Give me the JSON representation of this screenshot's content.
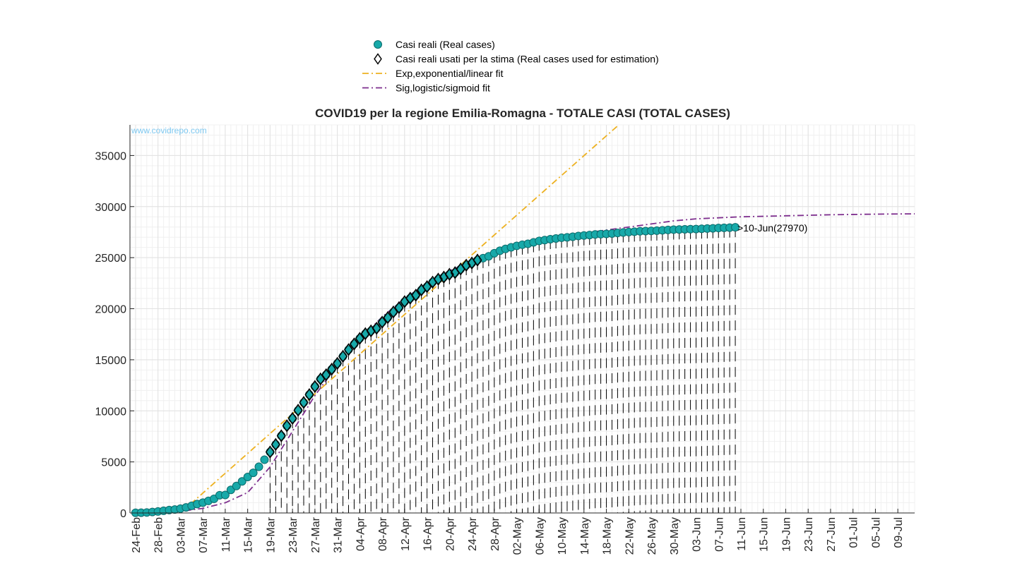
{
  "chart_data": {
    "type": "line",
    "title": "COVID19 per la regione Emilia-Romagna - TOTALE CASI (TOTAL CASES)",
    "watermark": "www.covidrepo.com",
    "annotation": ">10-Jun(27970)",
    "xlim": [
      -1,
      139
    ],
    "ylim": [
      0,
      38000
    ],
    "yticks": [
      0,
      5000,
      10000,
      15000,
      20000,
      25000,
      30000,
      35000
    ],
    "xticks": [
      {
        "value": 0,
        "label": "24-Feb"
      },
      {
        "value": 4,
        "label": "28-Feb"
      },
      {
        "value": 8,
        "label": "03-Mar"
      },
      {
        "value": 12,
        "label": "07-Mar"
      },
      {
        "value": 16,
        "label": "11-Mar"
      },
      {
        "value": 20,
        "label": "15-Mar"
      },
      {
        "value": 24,
        "label": "19-Mar"
      },
      {
        "value": 28,
        "label": "23-Mar"
      },
      {
        "value": 32,
        "label": "27-Mar"
      },
      {
        "value": 36,
        "label": "31-Mar"
      },
      {
        "value": 40,
        "label": "04-Apr"
      },
      {
        "value": 44,
        "label": "08-Apr"
      },
      {
        "value": 48,
        "label": "12-Apr"
      },
      {
        "value": 52,
        "label": "16-Apr"
      },
      {
        "value": 56,
        "label": "20-Apr"
      },
      {
        "value": 60,
        "label": "24-Apr"
      },
      {
        "value": 64,
        "label": "28-Apr"
      },
      {
        "value": 68,
        "label": "02-May"
      },
      {
        "value": 72,
        "label": "06-May"
      },
      {
        "value": 76,
        "label": "10-May"
      },
      {
        "value": 80,
        "label": "14-May"
      },
      {
        "value": 84,
        "label": "18-May"
      },
      {
        "value": 88,
        "label": "22-May"
      },
      {
        "value": 92,
        "label": "26-May"
      },
      {
        "value": 96,
        "label": "30-May"
      },
      {
        "value": 100,
        "label": "03-Jun"
      },
      {
        "value": 104,
        "label": "07-Jun"
      },
      {
        "value": 108,
        "label": "11-Jun"
      },
      {
        "value": 112,
        "label": "15-Jun"
      },
      {
        "value": 116,
        "label": "19-Jun"
      },
      {
        "value": 120,
        "label": "23-Jun"
      },
      {
        "value": 124,
        "label": "27-Jun"
      },
      {
        "value": 128,
        "label": "01-Jul"
      },
      {
        "value": 132,
        "label": "05-Jul"
      },
      {
        "value": 136,
        "label": "09-Jul"
      }
    ],
    "grid": true,
    "minor_grid": true,
    "series": [
      {
        "name": "Casi reali (Real cases)",
        "color": "#17a9a9",
        "marker": "circle",
        "stems": true,
        "x": [
          0,
          1,
          2,
          3,
          4,
          5,
          6,
          7,
          8,
          9,
          10,
          11,
          12,
          13,
          14,
          15,
          16,
          17,
          18,
          19,
          20,
          21,
          22,
          23,
          24,
          25,
          26,
          27,
          28,
          29,
          30,
          31,
          32,
          33,
          34,
          35,
          36,
          37,
          38,
          39,
          40,
          41,
          42,
          43,
          44,
          45,
          46,
          47,
          48,
          49,
          50,
          51,
          52,
          53,
          54,
          55,
          56,
          57,
          58,
          59,
          60,
          61,
          62,
          63,
          64,
          65,
          66,
          67,
          68,
          69,
          70,
          71,
          72,
          73,
          74,
          75,
          76,
          77,
          78,
          79,
          80,
          81,
          82,
          83,
          84,
          85,
          86,
          87,
          88,
          89,
          90,
          91,
          92,
          93,
          94,
          95,
          96,
          97,
          98,
          99,
          100,
          101,
          102,
          103,
          104,
          105,
          106,
          107
        ],
        "values": [
          18,
          26,
          47,
          97,
          145,
          217,
          285,
          335,
          420,
          544,
          698,
          870,
          1010,
          1180,
          1386,
          1739,
          1758,
          2263,
          2644,
          3093,
          3522,
          3931,
          4525,
          5214,
          5968,
          6705,
          7555,
          8535,
          9254,
          10054,
          10816,
          11588,
          12383,
          13119,
          13531,
          14074,
          14644,
          15333,
          15988,
          16540,
          17089,
          17556,
          17825,
          18081,
          18677,
          19128,
          19674,
          20098,
          20686,
          21029,
          21318,
          21834,
          22160,
          22601,
          22891,
          23092,
          23364,
          23529,
          23880,
          24254,
          24470,
          24758,
          24952,
          25132,
          25436,
          25675,
          25859,
          26016,
          26155,
          26267,
          26354,
          26500,
          26639,
          26718,
          26811,
          26875,
          26955,
          26991,
          27047,
          27122,
          27167,
          27213,
          27271,
          27296,
          27327,
          27363,
          27418,
          27466,
          27503,
          27542,
          27581,
          27601,
          27621,
          27648,
          27679,
          27717,
          27744,
          27760,
          27775,
          27788,
          27803,
          27829,
          27850,
          27872,
          27902,
          27923,
          27941,
          27970
        ]
      },
      {
        "name": "Casi reali usati per la stima (Real cases used for estimation)",
        "color": "#000000",
        "marker": "diamond",
        "x": [
          24,
          25,
          26,
          27,
          28,
          29,
          30,
          31,
          32,
          33,
          34,
          35,
          36,
          37,
          38,
          39,
          40,
          41,
          42,
          43,
          44,
          45,
          46,
          47,
          48,
          49,
          50,
          51,
          52,
          53,
          54,
          55,
          56,
          57,
          58,
          59,
          60,
          61
        ],
        "values": [
          5968,
          6705,
          7555,
          8535,
          9254,
          10054,
          10816,
          11588,
          12383,
          13119,
          13531,
          14074,
          14644,
          15333,
          15988,
          16540,
          17089,
          17556,
          17825,
          18081,
          18677,
          19128,
          19674,
          20098,
          20686,
          21029,
          21318,
          21834,
          22160,
          22601,
          22891,
          23092,
          23364,
          23529,
          23880,
          24254,
          24470,
          24758
        ]
      },
      {
        "name": "Exp,exponential/linear fit",
        "color": "#edb120",
        "marker": "none",
        "x": [
          8,
          20,
          40,
          60,
          80,
          86
        ],
        "values": [
          0,
          5830,
          15550,
          25270,
          34990,
          37900
        ]
      },
      {
        "name": "Sig,logistic/sigmoid fit",
        "color": "#7e2f8e",
        "marker": "none",
        "x": [
          4,
          8,
          12,
          16,
          20,
          24,
          28,
          32,
          36,
          40,
          44,
          48,
          52,
          56,
          60,
          64,
          68,
          72,
          76,
          80,
          84,
          88,
          92,
          96,
          100,
          104,
          108,
          112,
          116,
          120,
          124,
          128,
          132,
          136,
          139
        ],
        "values": [
          20,
          150,
          450,
          1000,
          2000,
          4500,
          8000,
          11500,
          14500,
          17000,
          19200,
          21000,
          22500,
          23700,
          24700,
          25500,
          26100,
          26500,
          27000,
          27400,
          27700,
          28000,
          28300,
          28600,
          28800,
          28900,
          29000,
          29050,
          29100,
          29150,
          29200,
          29230,
          29260,
          29280,
          29290
        ]
      }
    ]
  }
}
